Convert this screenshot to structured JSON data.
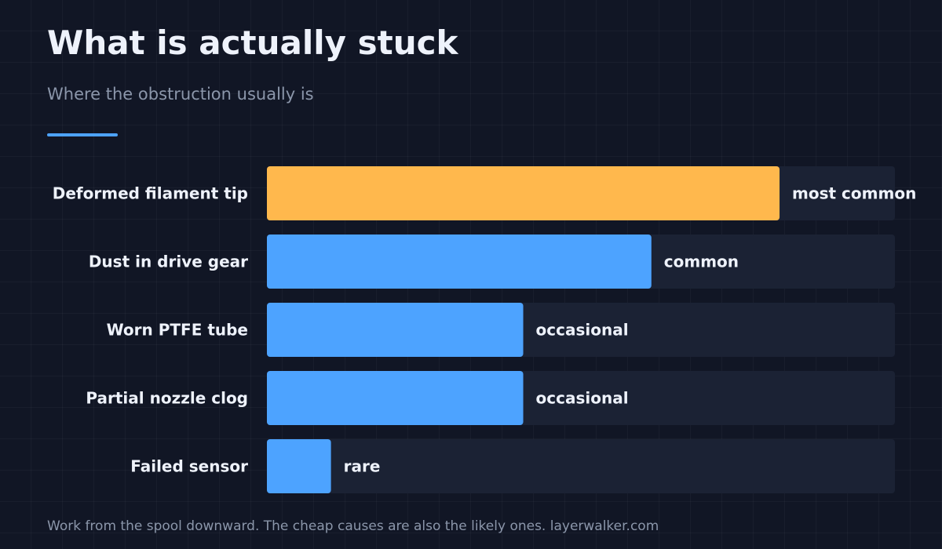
{
  "chart_data": {
    "type": "bar",
    "orientation": "horizontal",
    "title": "What is actually stuck",
    "subtitle": "Where the obstruction usually is",
    "categories": [
      "Deformed filament tip",
      "Dust in drive gear",
      "Worn PTFE tube",
      "Partial nozzle clog",
      "Failed sensor"
    ],
    "values": [
      4,
      3,
      2,
      2,
      0.5
    ],
    "value_labels": [
      "most common",
      "common",
      "occasional",
      "occasional",
      "rare"
    ],
    "xlim": [
      0,
      4.9
    ],
    "highlight_index": 0,
    "grid": true,
    "legend": "none"
  },
  "footer": "Work from the spool downward. The cheap causes are also the likely ones. layerwalker.com",
  "colors": {
    "background": "#111625",
    "track": "#1b2234",
    "bar": "#4da3ff",
    "highlight": "#ffb84d",
    "accent": "#4da3ff"
  }
}
